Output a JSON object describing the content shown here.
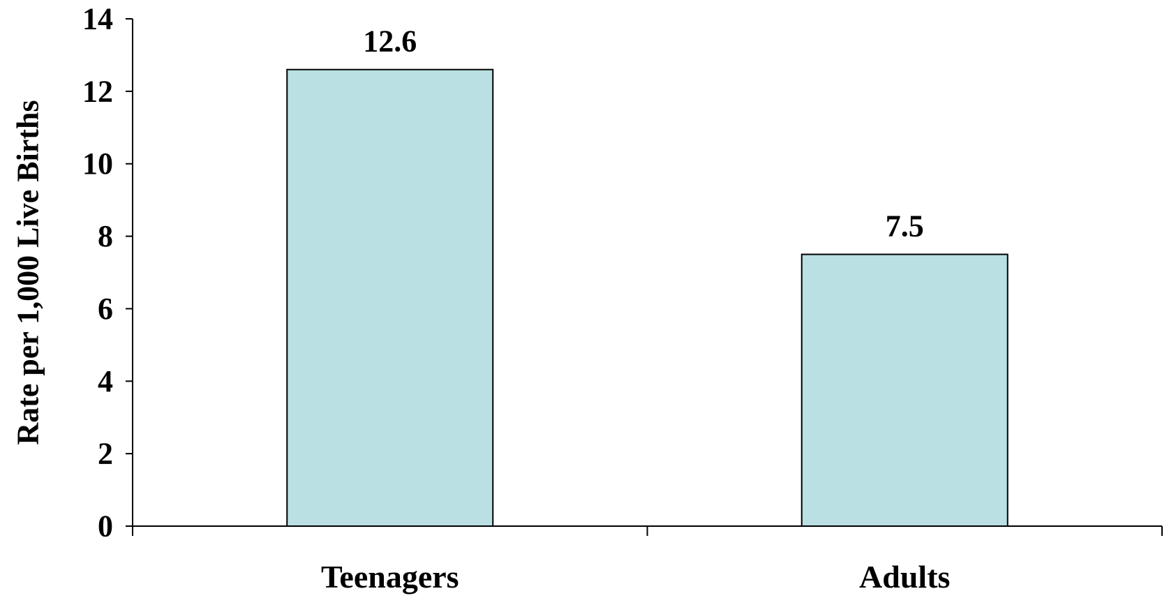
{
  "chart_data": {
    "type": "bar",
    "categories": [
      "Teenagers",
      "Adults"
    ],
    "values": [
      12.6,
      7.5
    ],
    "data_labels": [
      "12.6",
      "7.5"
    ],
    "title": "",
    "xlabel": "",
    "ylabel": "Rate per 1,000 Live Births",
    "ylim": [
      0,
      14
    ],
    "yticks": [
      0,
      2,
      4,
      6,
      8,
      10,
      12,
      14
    ],
    "ytick_labels": [
      "0",
      "2",
      "4",
      "6",
      "8",
      "10",
      "12",
      "14"
    ],
    "grid": false,
    "legend": "none",
    "bar_color": "#bae0e3",
    "bar_edge_color": "#000000",
    "axis_color": "#000000"
  }
}
